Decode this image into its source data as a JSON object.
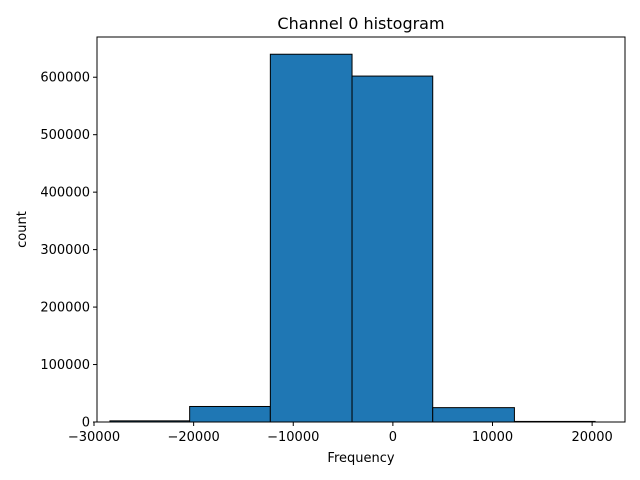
{
  "chart_data": {
    "type": "bar",
    "title": "Channel 0 histogram",
    "xlabel": "Frequency",
    "ylabel": "count",
    "xlim": [
      -29700,
      23300
    ],
    "ylim": [
      0,
      670000
    ],
    "bins": [
      {
        "start": -28400,
        "end": -20400,
        "count": 2000
      },
      {
        "start": -20400,
        "end": -12300,
        "count": 27000
      },
      {
        "start": -12300,
        "end": -4100,
        "count": 640000
      },
      {
        "start": -4100,
        "end": 4000,
        "count": 602000
      },
      {
        "start": 4000,
        "end": 12200,
        "count": 25000
      },
      {
        "start": 12200,
        "end": 20300,
        "count": 1000
      }
    ],
    "xticks": [
      -30000,
      -20000,
      -10000,
      0,
      10000,
      20000
    ],
    "xtick_labels": [
      "−30000",
      "−20000",
      "−10000",
      "0",
      "10000",
      "20000"
    ],
    "yticks": [
      0,
      100000,
      200000,
      300000,
      400000,
      500000,
      600000
    ],
    "ytick_labels": [
      "0",
      "100000",
      "200000",
      "300000",
      "400000",
      "500000",
      "600000"
    ],
    "grid": false,
    "bar_color": "#1f77b4",
    "edge_color": "#000000"
  }
}
